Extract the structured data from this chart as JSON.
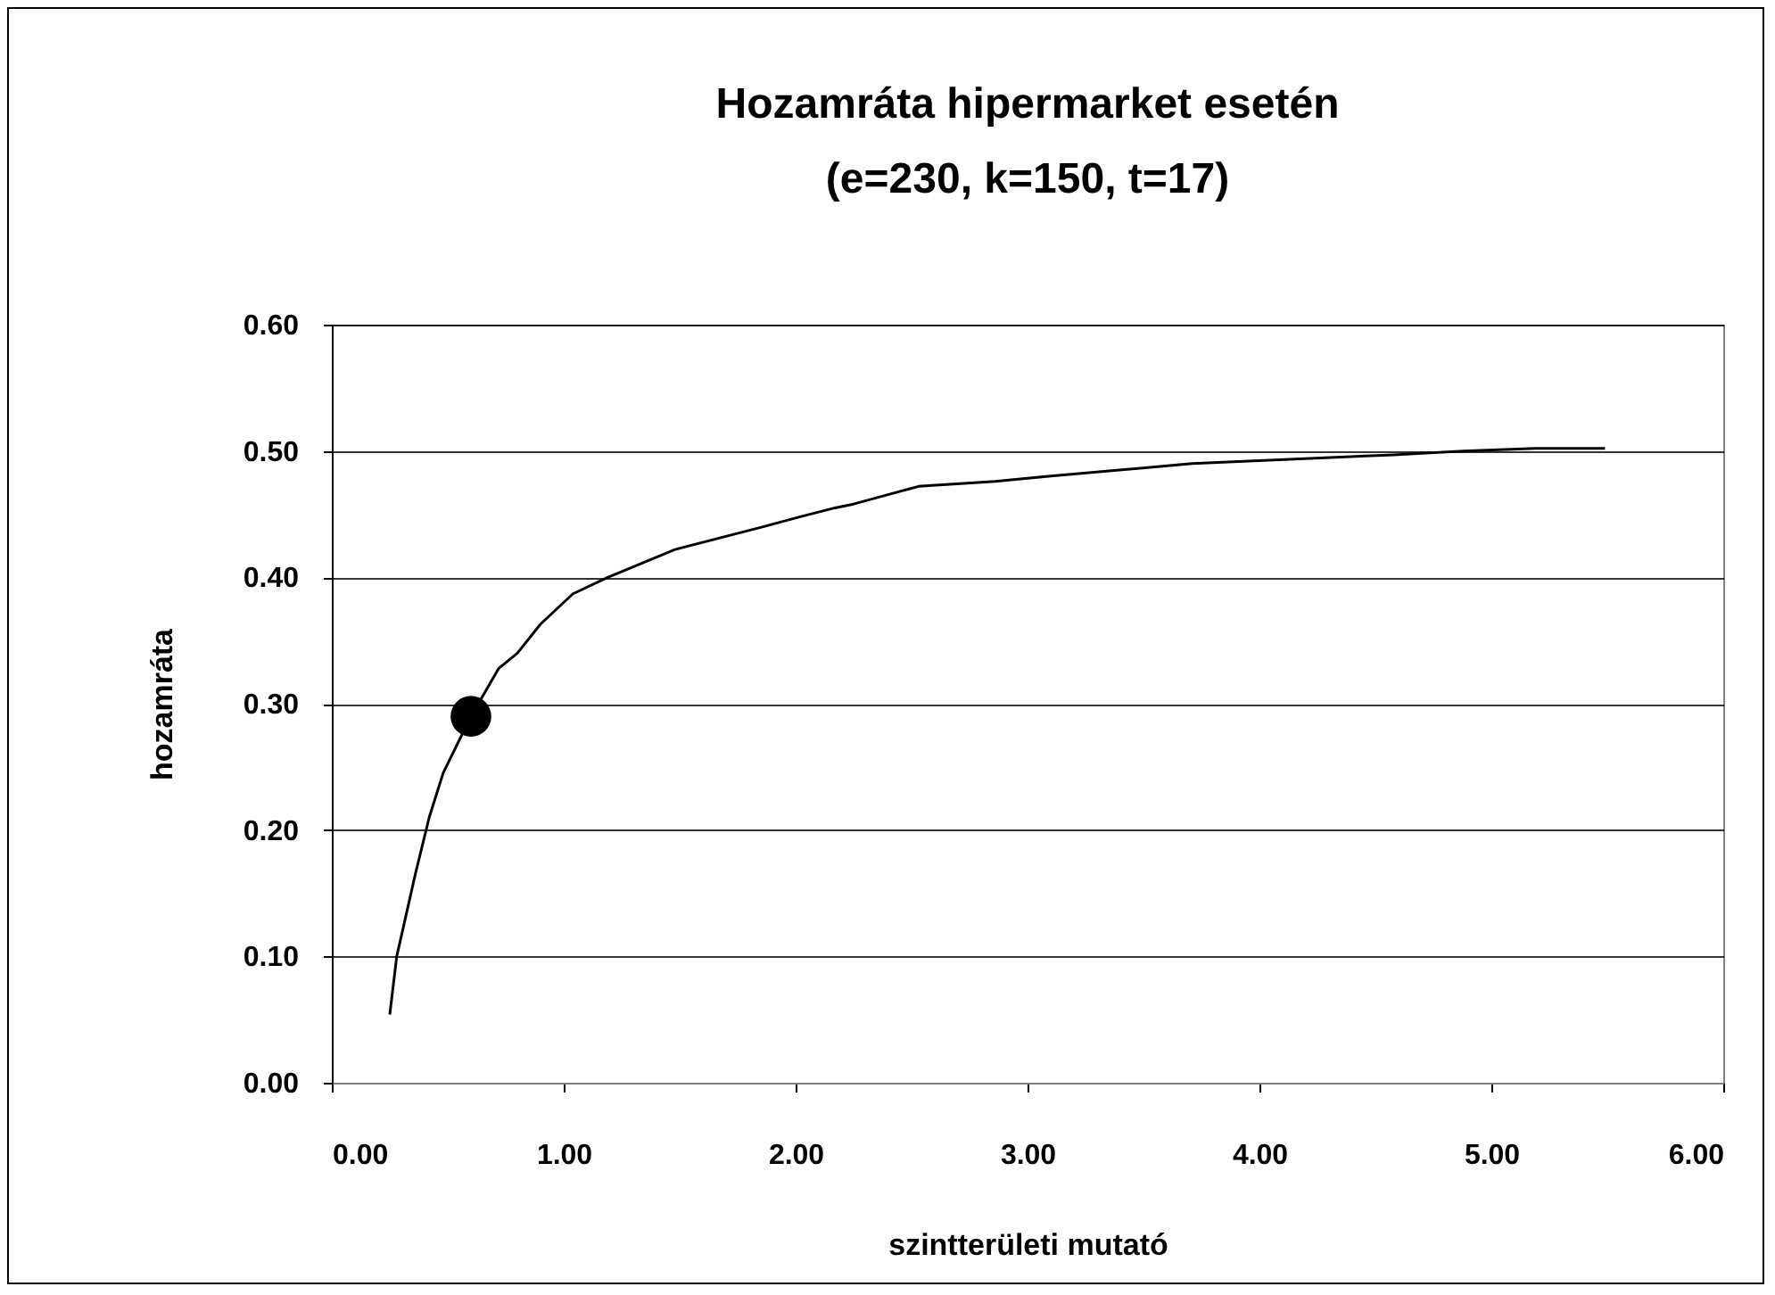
{
  "chart_data": {
    "type": "line",
    "title": "Hozamráta hipermarket esetén",
    "subtitle": "(e=230, k=150, t=17)",
    "xlabel": "szintterületi mutató",
    "ylabel": "hozamráta",
    "xlim": [
      0,
      6
    ],
    "xticks": [
      {
        "value": 0,
        "label": "0.00"
      },
      {
        "value": 1,
        "label": "1.00"
      },
      {
        "value": 2,
        "label": "2.00"
      },
      {
        "value": 3,
        "label": "3.00"
      },
      {
        "value": 4,
        "label": "4.00"
      },
      {
        "value": 5,
        "label": "5.00"
      },
      {
        "value": 6,
        "label": "6.00"
      }
    ],
    "ylim": [
      0,
      0.6
    ],
    "yticks": [
      {
        "value": 0,
        "label": "0.00"
      },
      {
        "value": 0.1,
        "label": "0.10"
      },
      {
        "value": 0.2,
        "label": "0.20"
      },
      {
        "value": 0.3,
        "label": "0.30"
      },
      {
        "value": 0.4,
        "label": "0.40"
      },
      {
        "value": 0.5,
        "label": "0.50"
      },
      {
        "value": 0.6,
        "label": "0.60"
      }
    ],
    "grid": "y",
    "series": [
      {
        "color": "#000000",
        "marker": "none",
        "x": [
          0.25,
          0.28,
          0.36,
          0.42,
          0.48,
          0.6,
          0.72,
          0.8,
          0.9,
          1.04,
          1.19,
          1.48,
          1.86,
          2.02,
          2.17,
          2.25,
          2.53,
          2.86,
          3.09,
          3.71,
          4.58,
          4.88,
          5.19,
          5.49
        ],
        "values": [
          0.054,
          0.1,
          0.165,
          0.21,
          0.245,
          0.29,
          0.328,
          0.34,
          0.363,
          0.387,
          0.4,
          0.422,
          0.44,
          0.448,
          0.455,
          0.458,
          0.472,
          0.476,
          0.48,
          0.49,
          0.497,
          0.5,
          0.502,
          0.502
        ]
      },
      {
        "type": "scatter",
        "color": "#000000",
        "marker": "circle",
        "x": [
          0.6
        ],
        "values": [
          0.29
        ]
      }
    ]
  }
}
